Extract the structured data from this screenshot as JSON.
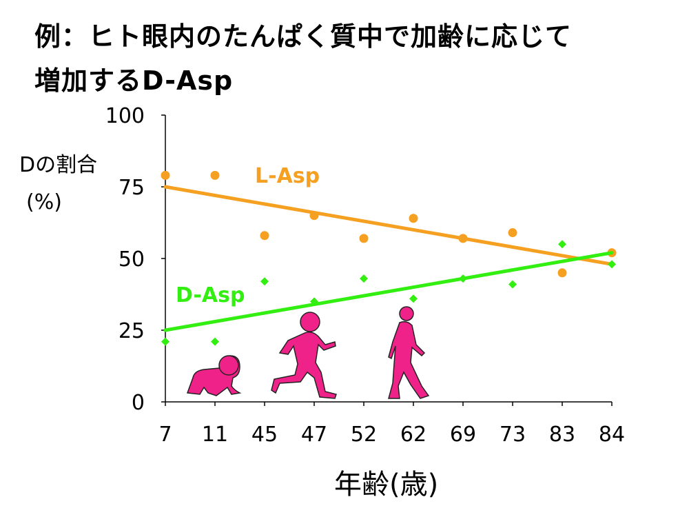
{
  "title": {
    "line1": "例：ヒト眼内のたんぱく質中で加齢に応じて",
    "line2": "増加するD-Asp"
  },
  "chart_data": {
    "type": "scatter",
    "title": "例：ヒト眼内のたんぱく質中で加齢に応じて増加するD-Asp",
    "ylabel_line1": "Dの割合",
    "ylabel_line2": "(%)",
    "xlabel": "年齢(歳)",
    "ylim": [
      0,
      100
    ],
    "yticks": [
      "0",
      "25",
      "50",
      "75",
      "100"
    ],
    "categories": [
      "7",
      "11",
      "45",
      "47",
      "52",
      "62",
      "69",
      "73",
      "83",
      "84"
    ],
    "series": [
      {
        "name": "L-Asp",
        "color": "#f5a020",
        "marker": "circle",
        "values": [
          79,
          79,
          58,
          65,
          57,
          64,
          57,
          59,
          45,
          52
        ],
        "trend": [
          75,
          48
        ]
      },
      {
        "name": "D-Asp",
        "color": "#33ee11",
        "marker": "diamond",
        "values": [
          21,
          21,
          42,
          35,
          43,
          36,
          43,
          41,
          55,
          48
        ],
        "trend": [
          25,
          52
        ]
      }
    ],
    "illustration_color": "#ee2288",
    "illustrations": [
      "baby-crawling-silhouette",
      "child-running-silhouette",
      "adult-walking-silhouette"
    ]
  }
}
